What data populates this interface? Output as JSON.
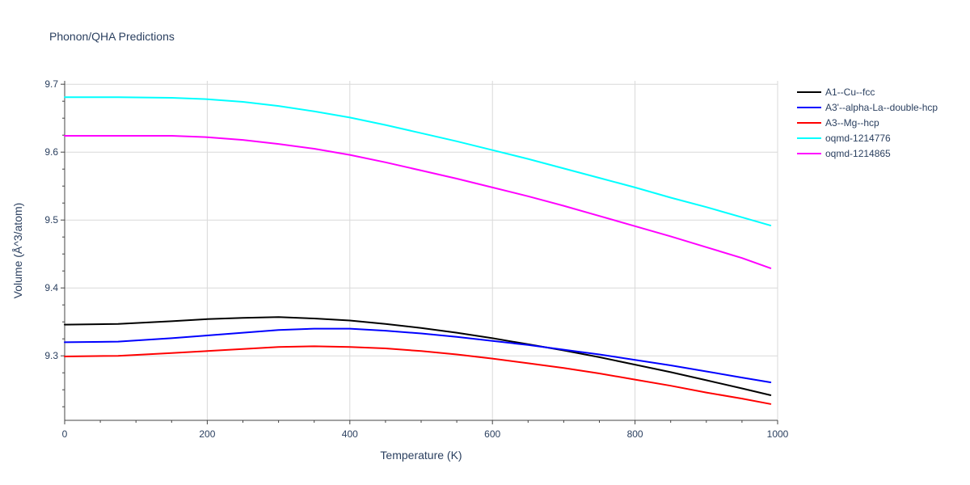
{
  "chart_data": {
    "type": "line",
    "title": "Phonon/QHA Predictions",
    "xlabel": "Temperature (K)",
    "ylabel": "Volume (Å^3/atom)",
    "xlim": [
      0,
      1000
    ],
    "ylim": [
      9.205,
      9.705
    ],
    "xticks": [
      0,
      200,
      400,
      600,
      800,
      1000
    ],
    "yticks": [
      9.3,
      9.4,
      9.5,
      9.6,
      9.7
    ],
    "grid": true,
    "legend_position": "right",
    "series": [
      {
        "name": "A1--Cu--fcc",
        "color": "#000000",
        "x": [
          0,
          75,
          150,
          200,
          250,
          300,
          350,
          400,
          450,
          500,
          550,
          600,
          650,
          700,
          750,
          800,
          850,
          900,
          950,
          990
        ],
        "y": [
          9.346,
          9.347,
          9.351,
          9.354,
          9.356,
          9.357,
          9.355,
          9.352,
          9.347,
          9.341,
          9.334,
          9.326,
          9.317,
          9.308,
          9.298,
          9.287,
          9.276,
          9.264,
          9.252,
          9.242
        ]
      },
      {
        "name": "A3'--alpha-La--double-hcp",
        "color": "#0000ff",
        "x": [
          0,
          75,
          150,
          200,
          250,
          300,
          350,
          400,
          450,
          500,
          550,
          600,
          650,
          700,
          750,
          800,
          850,
          900,
          950,
          990
        ],
        "y": [
          9.32,
          9.321,
          9.326,
          9.33,
          9.334,
          9.338,
          9.34,
          9.34,
          9.337,
          9.333,
          9.328,
          9.322,
          9.316,
          9.309,
          9.302,
          9.294,
          9.286,
          9.277,
          9.268,
          9.261
        ]
      },
      {
        "name": "A3--Mg--hcp",
        "color": "#ff0000",
        "x": [
          0,
          75,
          150,
          200,
          250,
          300,
          350,
          400,
          450,
          500,
          550,
          600,
          650,
          700,
          750,
          800,
          850,
          900,
          950,
          990
        ],
        "y": [
          9.299,
          9.3,
          9.304,
          9.307,
          9.31,
          9.313,
          9.314,
          9.313,
          9.311,
          9.307,
          9.302,
          9.296,
          9.289,
          9.282,
          9.274,
          9.265,
          9.256,
          9.246,
          9.237,
          9.229
        ]
      },
      {
        "name": "oqmd-1214776",
        "color": "#00ffff",
        "x": [
          0,
          75,
          150,
          200,
          250,
          300,
          350,
          400,
          450,
          500,
          550,
          600,
          650,
          700,
          750,
          800,
          850,
          900,
          950,
          990
        ],
        "y": [
          9.681,
          9.681,
          9.68,
          9.678,
          9.674,
          9.668,
          9.66,
          9.651,
          9.64,
          9.628,
          9.616,
          9.603,
          9.59,
          9.576,
          9.562,
          9.548,
          9.533,
          9.519,
          9.504,
          9.492
        ]
      },
      {
        "name": "oqmd-1214865",
        "color": "#ff00ff",
        "x": [
          0,
          75,
          150,
          200,
          250,
          300,
          350,
          400,
          450,
          500,
          550,
          600,
          650,
          700,
          750,
          800,
          850,
          900,
          950,
          990
        ],
        "y": [
          9.624,
          9.624,
          9.624,
          9.622,
          9.618,
          9.612,
          9.605,
          9.596,
          9.585,
          9.573,
          9.561,
          9.548,
          9.535,
          9.521,
          9.506,
          9.491,
          9.476,
          9.46,
          9.444,
          9.429
        ]
      }
    ]
  }
}
